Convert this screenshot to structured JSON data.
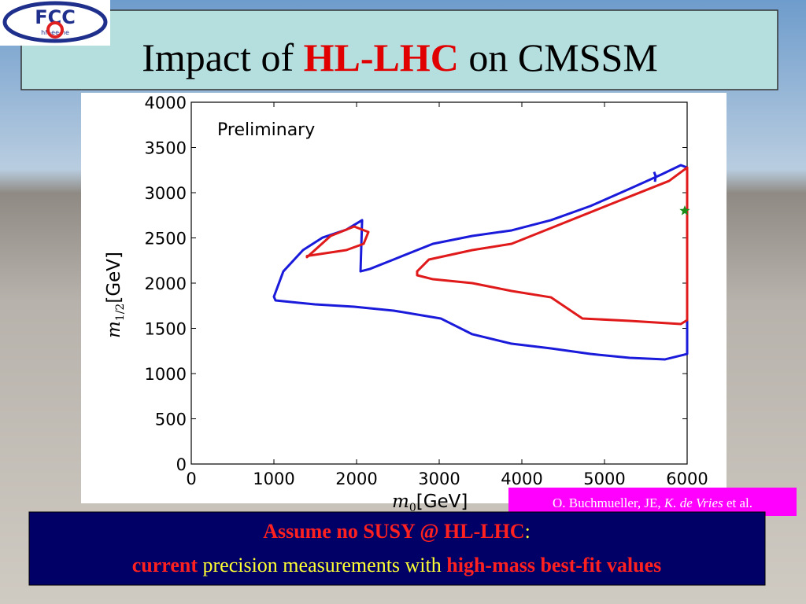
{
  "logo": {
    "name": "FCC",
    "sub": "hh-ee-he"
  },
  "title": {
    "part1": "Impact of ",
    "part2": "HL-LHC",
    "part3": " on CMSSM"
  },
  "chart_data": {
    "type": "line",
    "annotation": "Preliminary",
    "x_label": {
      "symbol": "m",
      "sub": "0",
      "unit": "[GeV]"
    },
    "y_label": {
      "symbol": "m",
      "sub": "1/2",
      "unit": "[GeV]"
    },
    "xlim": [
      0,
      6000
    ],
    "xticks": [
      0,
      1000,
      2000,
      3000,
      4000,
      5000,
      6000
    ],
    "ylim": [
      0,
      4000
    ],
    "yticks": [
      0,
      500,
      1000,
      1500,
      2000,
      2500,
      3000,
      3500,
      4000
    ],
    "series": [
      {
        "color": "#1a1adb",
        "closed": true,
        "x": [
          1000,
          1114,
          1352,
          1590,
          1876,
          2067,
          2048,
          2162,
          2448,
          2924,
          3400,
          3876,
          4352,
          4829,
          5305,
          5686,
          5924,
          6000,
          6000,
          5733,
          5305,
          4829,
          4352,
          3876,
          3400,
          3019,
          2448,
          1971,
          1495,
          1019
        ],
        "values": [
          1850,
          2130,
          2365,
          2504,
          2591,
          2696,
          2130,
          2157,
          2261,
          2435,
          2522,
          2583,
          2696,
          2852,
          3043,
          3200,
          3304,
          3278,
          1217,
          1157,
          1174,
          1217,
          1278,
          1330,
          1435,
          1609,
          1696,
          1739,
          1765,
          1809
        ]
      },
      {
        "color": "#1a1adb",
        "closed": false,
        "x": [
          5600,
          5620,
          5610
        ],
        "values": [
          3230,
          3180,
          3120
        ]
      },
      {
        "color": "#e01a1a",
        "closed": true,
        "x": [
          1400,
          1686,
          1971,
          2143,
          2086,
          1876,
          1400
        ],
        "values": [
          2287,
          2522,
          2626,
          2565,
          2435,
          2365,
          2300
        ]
      },
      {
        "color": "#e01a1a",
        "closed": true,
        "x": [
          2733,
          2876,
          3400,
          3876,
          4352,
          4829,
          5305,
          5781,
          6000,
          6000,
          5924,
          5305,
          4733,
          4352,
          3876,
          3400,
          2924,
          2733
        ],
        "values": [
          2130,
          2261,
          2365,
          2435,
          2609,
          2783,
          2957,
          3130,
          3278,
          1591,
          1548,
          1583,
          1609,
          1843,
          1913,
          2000,
          2043,
          2087
        ]
      }
    ],
    "best_fit": {
      "x": 5971,
      "y": 2800,
      "color": "#1a8c1a"
    }
  },
  "footer": {
    "line1a": "Assume no SUSY @ HL-LHC",
    "line1b": ":",
    "line2a": "current",
    "line2b": " precision measurements with ",
    "line2c": "high-mass best-fit values"
  },
  "credit": {
    "a": "O. Buchmueller, JE, ",
    "b": "K. de Vries",
    "c": " et al."
  }
}
